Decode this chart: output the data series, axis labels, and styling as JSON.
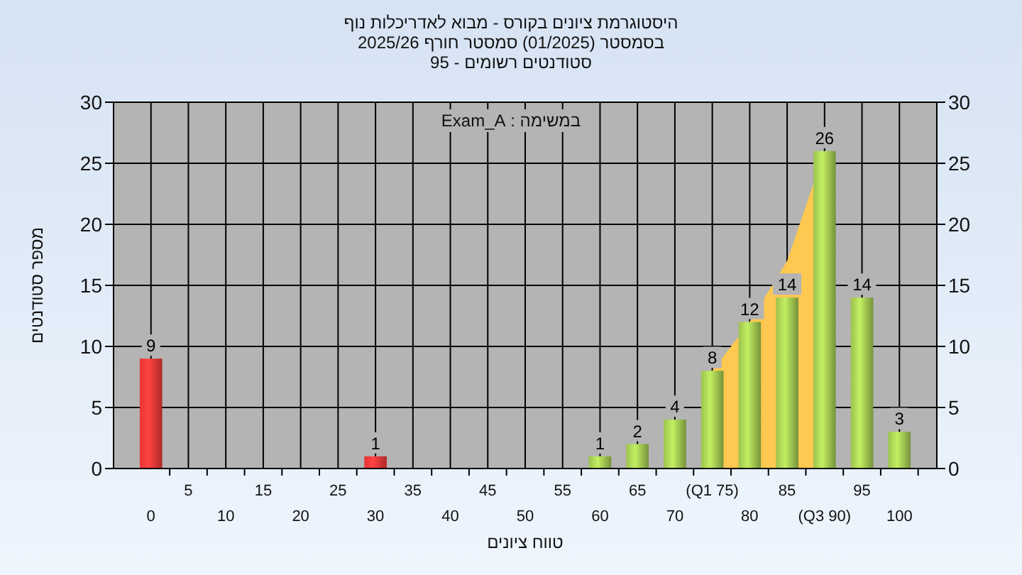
{
  "chart_data": {
    "type": "bar",
    "title": "היסטוגרמת ציונים בקורס - מבוא לאדריכלות נוף",
    "subtitle": "בסמסטר  (01/2025)  סמסטר חורף 2025/26\nסטודנטים רשומים - 95",
    "annotations": [
      "במשימה : Exam_A"
    ],
    "xlabel": "טווח ציונים",
    "ylabel": "מספר סטודנטים",
    "categories": [
      "0",
      "5",
      "10",
      "15",
      "20",
      "25",
      "30",
      "35",
      "40",
      "45",
      "50",
      "55",
      "60",
      "65",
      "70",
      "(Q1 75)",
      "80",
      "85",
      "(Q3 90)",
      "95",
      "100"
    ],
    "series": [
      {
        "type": "area",
        "color": "#ffc850",
        "values": [
          null,
          null,
          null,
          null,
          null,
          null,
          null,
          null,
          null,
          null,
          null,
          null,
          null,
          null,
          null,
          8,
          12,
          17,
          26,
          null,
          null
        ]
      },
      {
        "values": [
          9,
          0,
          0,
          0,
          0,
          0,
          1,
          0,
          0,
          0,
          0,
          0,
          1,
          2,
          4,
          8,
          12,
          14,
          26,
          14,
          3
        ],
        "colors": [
          "#e83535",
          "#e83535",
          "#e83535",
          "#e83535",
          "#e83535",
          "#e83535",
          "#e83535",
          "#e83535",
          "#e83535",
          "#e83535",
          "#e83535",
          "#e83535",
          "#9dc24e",
          "#9dc24e",
          "#9dc24e",
          "#9dc24e",
          "#9dc24e",
          "#9dc24e",
          "#9dc24e",
          "#9dc24e",
          "#9dc24e"
        ],
        "value_labels": [
          "9",
          null,
          null,
          null,
          null,
          null,
          "1",
          null,
          null,
          null,
          null,
          null,
          "1",
          "2",
          "4",
          "8",
          "12",
          "14",
          "26",
          "14",
          "3"
        ]
      }
    ],
    "ylim": [
      0,
      30
    ],
    "yticks": [
      0,
      5,
      10,
      15,
      20,
      25,
      30
    ],
    "y2lim": [
      0,
      30
    ],
    "y2ticks": [
      0,
      5,
      10,
      15,
      20,
      25,
      30
    ],
    "grid": true
  }
}
